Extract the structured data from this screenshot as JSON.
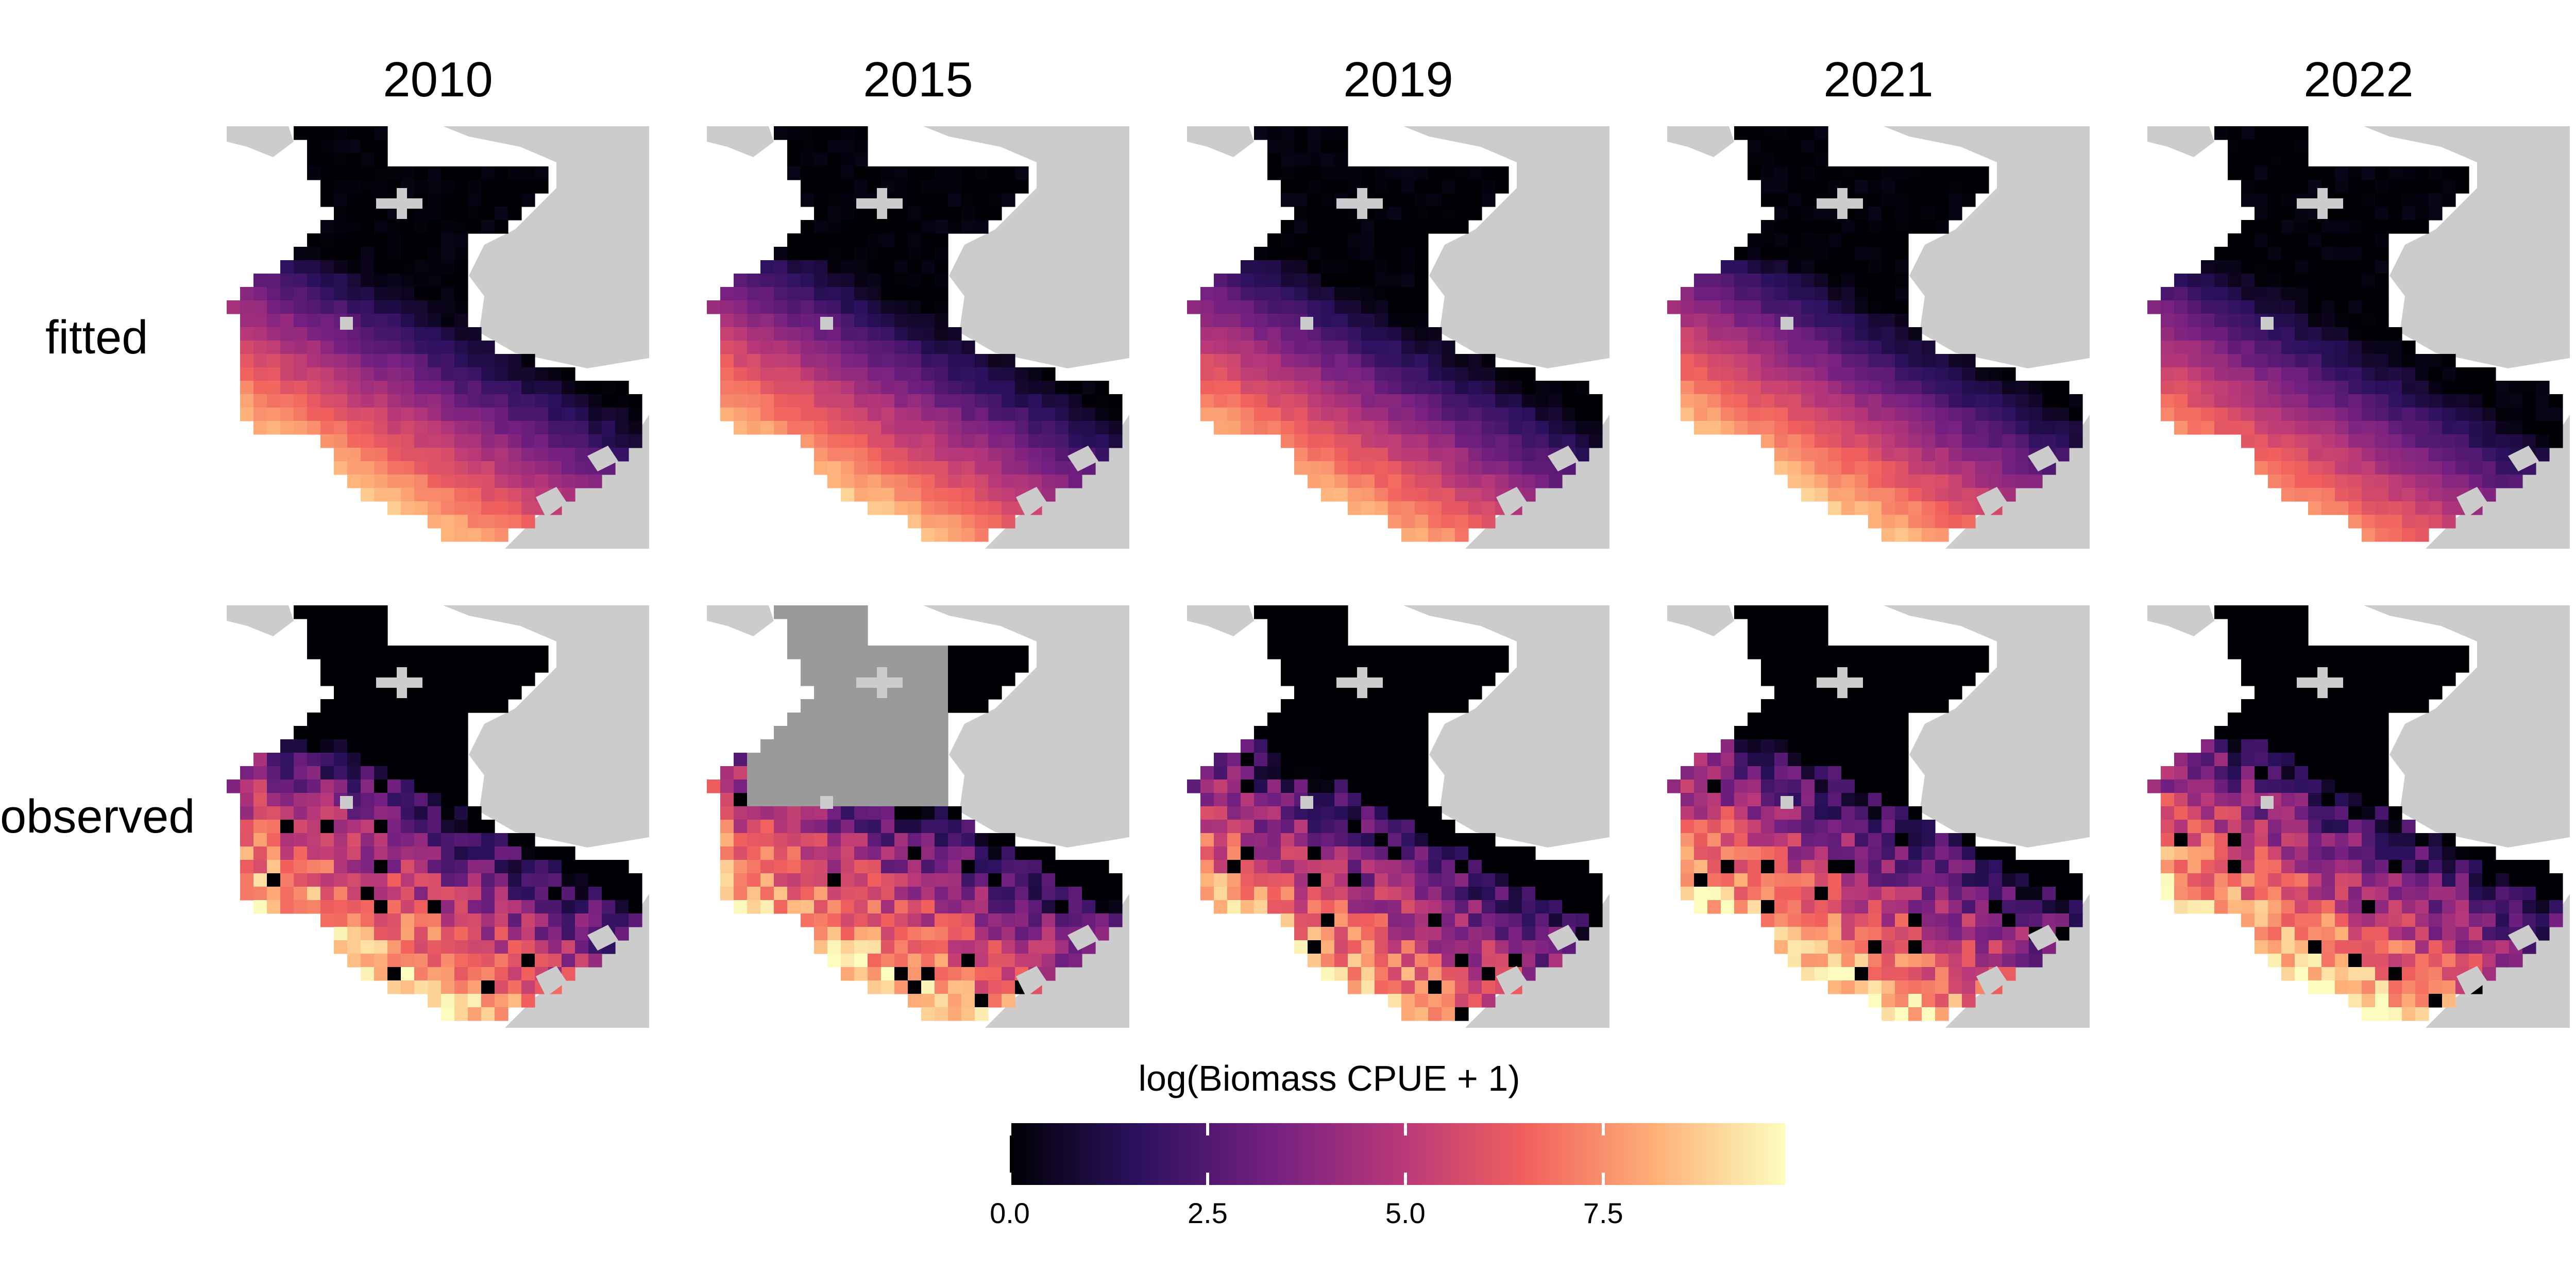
{
  "panels": {
    "columns": [
      "2010",
      "2015",
      "2019",
      "2021",
      "2022"
    ],
    "rows": [
      "fitted",
      "observed"
    ]
  },
  "legend": {
    "title": "log(Biomass CPUE + 1)",
    "colormap": [
      "#000004",
      "#2c115f",
      "#721f81",
      "#b73779",
      "#f1605d",
      "#feb078",
      "#fcfdbf"
    ],
    "range": [
      0,
      9.8
    ],
    "ticks": [
      "0.0",
      "2.5",
      "5.0",
      "7.5"
    ],
    "tick_values": [
      0,
      2.5,
      5,
      7.5
    ]
  },
  "colors": {
    "land": "#cccccc",
    "missing_data": "#9a9a9a",
    "low_biomass": "#000004",
    "high_biomass": "#fcfdbf"
  }
}
